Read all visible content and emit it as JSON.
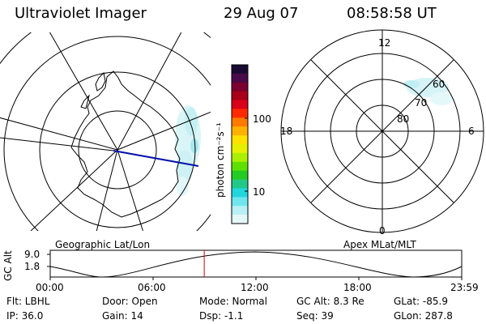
{
  "header": {
    "instrument": "Ultraviolet Imager",
    "date": "29 Aug 07",
    "time": "08:58:58 UT"
  },
  "colorbar": {
    "unit_label": "photon cm⁻²s⁻¹",
    "ticks": [
      "100",
      "10"
    ],
    "colors": [
      "#1a0a33",
      "#4a0a4a",
      "#7a0030",
      "#a80018",
      "#d8001a",
      "#ff2a00",
      "#ff7a00",
      "#ffb000",
      "#ffe000",
      "#e6f000",
      "#aaf000",
      "#5fe000",
      "#22cc22",
      "#22c888",
      "#22d6dd",
      "#6fe6ee",
      "#b8f0f4",
      "#e4f8fa"
    ]
  },
  "geo_panel": {
    "label": "Geographic Lat/Lon"
  },
  "mag_panel": {
    "label": "Apex MLat/MLT",
    "mlt_labels": {
      "top": "12",
      "left": "18",
      "right": "6",
      "bottom": "0"
    },
    "mlat_labels": [
      "60",
      "70",
      "80"
    ]
  },
  "timeline": {
    "ylabel": "GC Alt",
    "yticks": [
      "9.0",
      "1.8"
    ],
    "xticks": [
      "00:00",
      "06:00",
      "12:00",
      "18:00",
      "23:59"
    ],
    "marker_fraction": 0.3743
  },
  "info": {
    "flt": "Flt: LBHL",
    "ip": "IP: 36.0",
    "door": "Door: Open",
    "gain": "Gain: 14",
    "mode": "Mode: Normal",
    "dsp": "Dsp:   -1.1",
    "gc_alt": "GC Alt: 8.3 Re",
    "seq": "Seq: 39",
    "glat": "GLat: -85.9",
    "glon": "GLon: 287.8"
  }
}
